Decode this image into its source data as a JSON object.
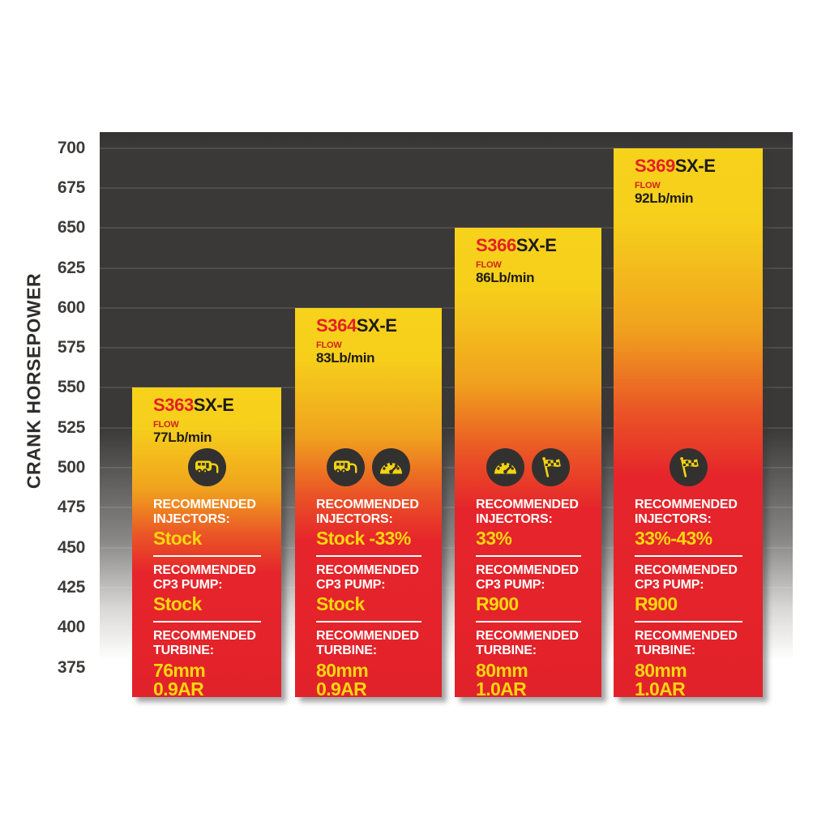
{
  "chart_data": {
    "type": "bar",
    "title": "",
    "xlabel": "",
    "ylabel": "CRANK HORSEPOWER",
    "ylim": [
      355,
      710
    ],
    "yticks": [
      700,
      675,
      650,
      625,
      600,
      575,
      550,
      525,
      500,
      475,
      450,
      425,
      400,
      375
    ],
    "grid": true,
    "legend": "none",
    "categories": [
      "S363SX-E",
      "S364SX-E",
      "S366SX-E",
      "S369SX-E"
    ],
    "values": [
      550,
      600,
      650,
      700
    ],
    "bars": [
      {
        "model_prefix": "S363",
        "model_suffix": "SX-E",
        "flow_label": "FLOW",
        "flow_value": "77Lb/min",
        "crank_horsepower": 550,
        "icons": [
          "towing-camper-icon"
        ],
        "sections": [
          {
            "label": "RECOMMENDED INJECTORS:",
            "value": "Stock"
          },
          {
            "label": "RECOMMENDED CP3 PUMP:",
            "value": "Stock"
          },
          {
            "label": "RECOMMENDED TURBINE:",
            "value": "76mm\n0.9AR"
          }
        ]
      },
      {
        "model_prefix": "S364",
        "model_suffix": "SX-E",
        "flow_label": "FLOW",
        "flow_value": "83Lb/min",
        "crank_horsepower": 600,
        "icons": [
          "towing-camper-icon",
          "gauge-icon"
        ],
        "sections": [
          {
            "label": "RECOMMENDED INJECTORS:",
            "value": "Stock -33%"
          },
          {
            "label": "RECOMMENDED CP3 PUMP:",
            "value": "Stock"
          },
          {
            "label": "RECOMMENDED TURBINE:",
            "value": "80mm\n0.9AR"
          }
        ]
      },
      {
        "model_prefix": "S366",
        "model_suffix": "SX-E",
        "flow_label": "FLOW",
        "flow_value": "86Lb/min",
        "crank_horsepower": 650,
        "icons": [
          "gauge-icon",
          "checkered-flag-icon"
        ],
        "sections": [
          {
            "label": "RECOMMENDED INJECTORS:",
            "value": "33%"
          },
          {
            "label": "RECOMMENDED CP3 PUMP:",
            "value": "R900"
          },
          {
            "label": "RECOMMENDED TURBINE:",
            "value": "80mm\n1.0AR"
          }
        ]
      },
      {
        "model_prefix": "S369",
        "model_suffix": "SX-E",
        "flow_label": "FLOW",
        "flow_value": "92Lb/min",
        "crank_horsepower": 700,
        "icons": [
          "checkered-flag-icon"
        ],
        "sections": [
          {
            "label": "RECOMMENDED INJECTORS:",
            "value": "33%-43%"
          },
          {
            "label": "RECOMMENDED CP3 PUMP:",
            "value": "R900"
          },
          {
            "label": "RECOMMENDED TURBINE:",
            "value": "80mm\n1.0AR"
          }
        ]
      }
    ],
    "colors": {
      "bar_gradient_top": "#f7d21b",
      "bar_gradient_mid": "#f0a21e",
      "bar_gradient_bottom": "#e2222a",
      "model_accent_red": "#e32026",
      "text_dark": "#1d1b1a",
      "value_yellow": "#f9d60f",
      "label_white": "#ffffff",
      "icon_circle_dark": "#33312f",
      "chart_background_dark": "#3b3937",
      "page_background": "#ffffff"
    }
  }
}
